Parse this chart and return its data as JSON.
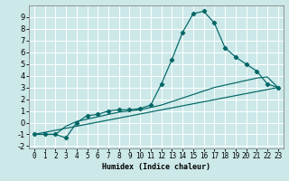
{
  "title": "",
  "xlabel": "Humidex (Indice chaleur)",
  "bg_color": "#cce8e8",
  "grid_color": "#ffffff",
  "line_color": "#006666",
  "xlim": [
    -0.5,
    23.5
  ],
  "ylim": [
    -2.2,
    10.0
  ],
  "xticks": [
    0,
    1,
    2,
    3,
    4,
    5,
    6,
    7,
    8,
    9,
    10,
    11,
    12,
    13,
    14,
    15,
    16,
    17,
    18,
    19,
    20,
    21,
    22,
    23
  ],
  "yticks": [
    -2,
    -1,
    0,
    1,
    2,
    3,
    4,
    5,
    6,
    7,
    8,
    9
  ],
  "curve1_x": [
    0,
    1,
    2,
    3,
    4,
    5,
    6,
    7,
    8,
    9,
    10,
    11,
    12,
    13,
    14,
    15,
    16,
    17,
    18,
    19,
    20,
    21,
    22,
    23
  ],
  "curve1_y": [
    -1,
    -1,
    -1,
    -1.3,
    0,
    0.6,
    0.7,
    1.0,
    1.1,
    1.1,
    1.2,
    1.5,
    3.3,
    5.4,
    7.7,
    9.3,
    9.5,
    8.5,
    6.4,
    5.6,
    5.0,
    4.4,
    3.3,
    3.0
  ],
  "curve2_x": [
    0,
    1,
    2,
    3,
    4,
    5,
    6,
    7,
    8,
    9,
    10,
    11,
    12,
    13,
    14,
    15,
    16,
    17,
    18,
    19,
    20,
    21,
    22,
    23
  ],
  "curve2_y": [
    -1,
    -1,
    -1,
    -0.3,
    0.1,
    0.3,
    0.5,
    0.7,
    0.9,
    1.0,
    1.1,
    1.3,
    1.5,
    1.8,
    2.1,
    2.4,
    2.7,
    3.0,
    3.2,
    3.4,
    3.6,
    3.8,
    3.9,
    3.0
  ],
  "curve3_x": [
    0,
    23
  ],
  "curve3_y": [
    -1,
    3.0
  ],
  "xlabel_fontsize": 6.0,
  "tick_fontsize": 5.5
}
